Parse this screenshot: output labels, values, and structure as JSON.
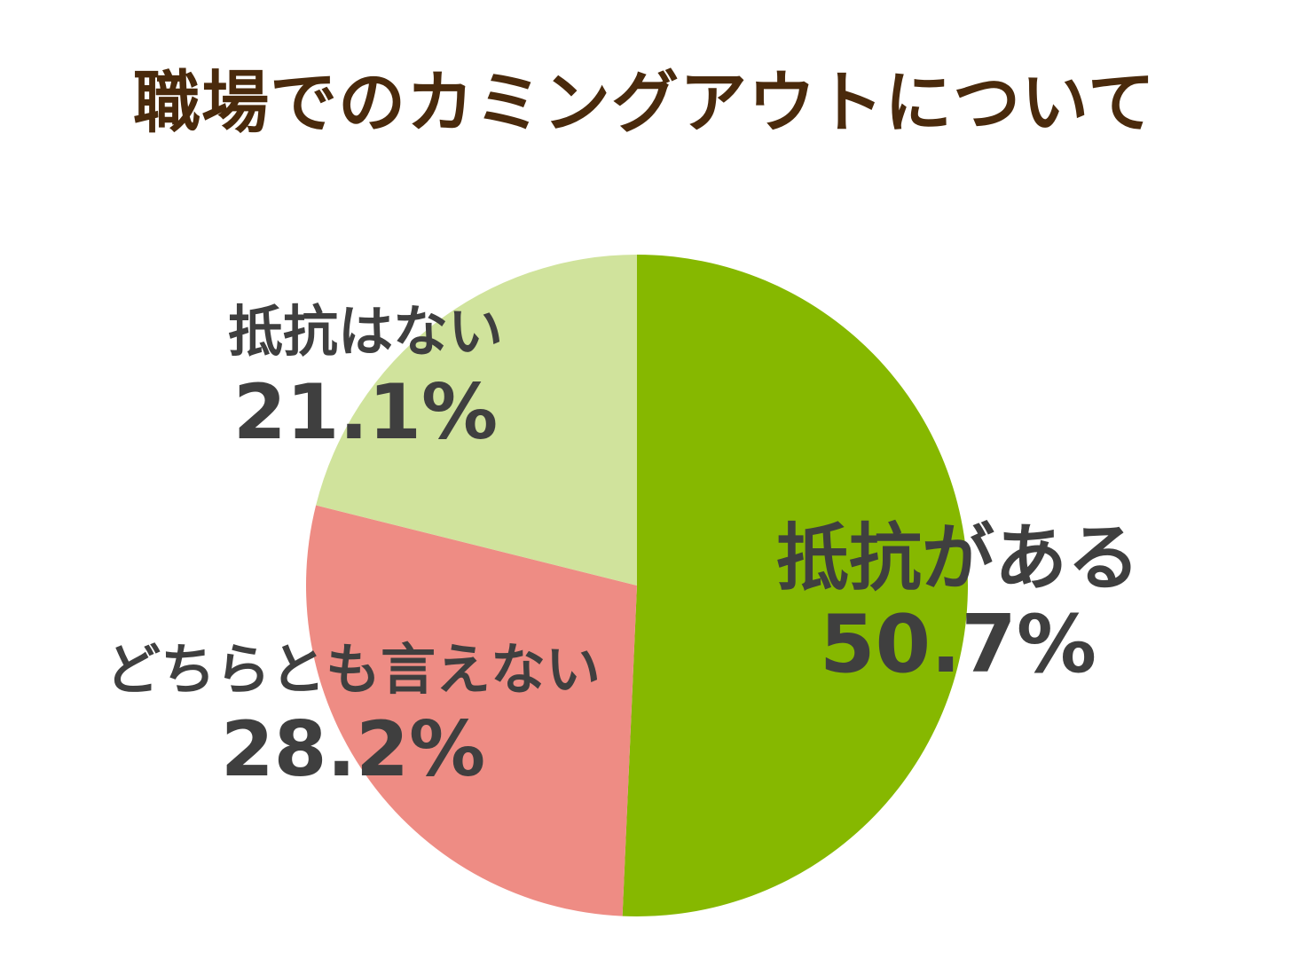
{
  "chart_data": {
    "type": "pie",
    "title": "職場でのカミングアウトについて",
    "start_angle": "12 o'clock, clockwise",
    "legend": "none (labels on slices)",
    "slices": [
      {
        "label": "抵抗がある",
        "value": 50.7,
        "value_text": "50.7%",
        "color": "#86b800"
      },
      {
        "label": "どちらとも言えない",
        "value": 28.2,
        "value_text": "28.2%",
        "color": "#ee8c84"
      },
      {
        "label": "抵抗はない",
        "value": 21.1,
        "value_text": "21.1%",
        "color": "#d0e39c"
      }
    ]
  }
}
